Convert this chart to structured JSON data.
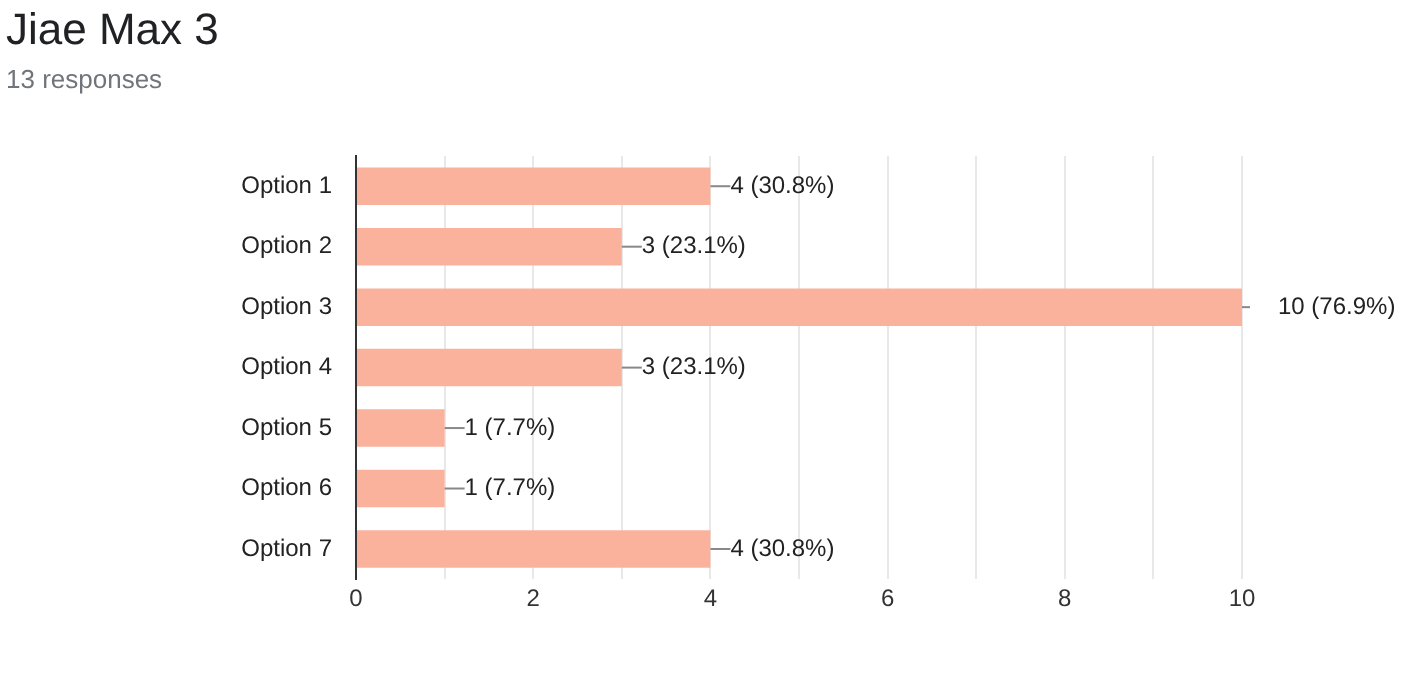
{
  "chart_data": {
    "type": "bar",
    "orientation": "horizontal",
    "title": "Jiae Max 3",
    "subtitle": "13 responses",
    "categories": [
      "Option 1",
      "Option 2",
      "Option 3",
      "Option 4",
      "Option 5",
      "Option 6",
      "Option 7"
    ],
    "values": [
      4,
      3,
      10,
      3,
      1,
      1,
      4
    ],
    "value_labels": [
      "4 (30.8%)",
      "3 (23.1%)",
      "10 (76.9%)",
      "3 (23.1%)",
      "1 (7.7%)",
      "1 (7.7%)",
      "4 (30.8%)"
    ],
    "color": "#fbb29d",
    "xlim": [
      0,
      10
    ],
    "xticks": [
      0,
      {
        "value": 1,
        "label": null
      },
      2,
      {
        "value": 3,
        "label": null
      },
      4,
      {
        "value": 5,
        "label": null
      },
      6,
      {
        "value": 7,
        "label": null
      },
      8,
      {
        "value": 9,
        "label": null
      },
      10
    ],
    "grid": "x",
    "legend": false
  }
}
